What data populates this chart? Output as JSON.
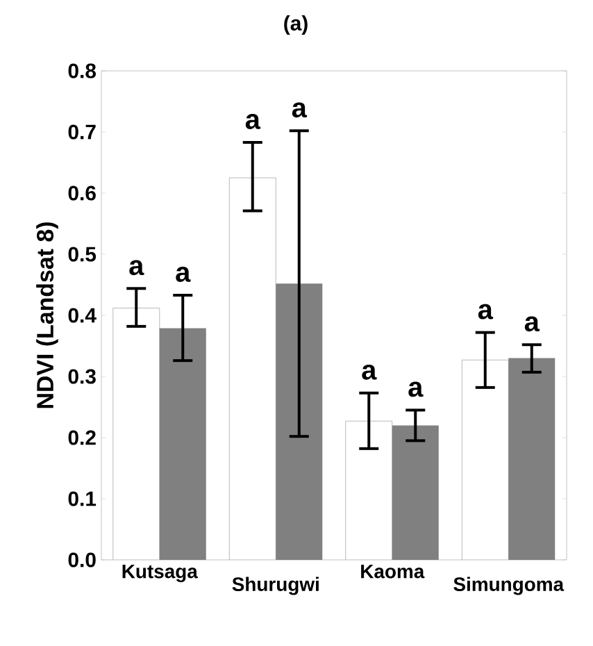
{
  "chart_data": {
    "type": "bar",
    "title": "(a)",
    "ylabel": "NDVI (Landsat 8)",
    "categories": [
      "Kutsaga",
      "Shurugwi",
      "Kaoma",
      "Simungoma"
    ],
    "series": [
      {
        "color": "#ffffff",
        "values": [
          0.412,
          0.625,
          0.227,
          0.327
        ],
        "errors": [
          [
            0.382,
            0.444
          ],
          [
            0.571,
            0.683
          ],
          [
            0.182,
            0.273
          ],
          [
            0.282,
            0.372
          ]
        ]
      },
      {
        "color": "#808080",
        "values": [
          0.379,
          0.452,
          0.22,
          0.33
        ],
        "errors": [
          [
            0.326,
            0.433
          ],
          [
            0.202,
            0.702
          ],
          [
            0.195,
            0.245
          ],
          [
            0.307,
            0.352
          ]
        ]
      }
    ],
    "ylim": [
      0,
      0.8
    ],
    "yticks": [
      "0.0",
      0.1,
      0.2,
      0.3,
      0.4,
      0.5,
      0.6,
      0.7,
      0.8
    ],
    "annotations": [
      "a",
      "a",
      "a",
      "a",
      "a",
      "a",
      "a",
      "a"
    ],
    "grid": false
  }
}
